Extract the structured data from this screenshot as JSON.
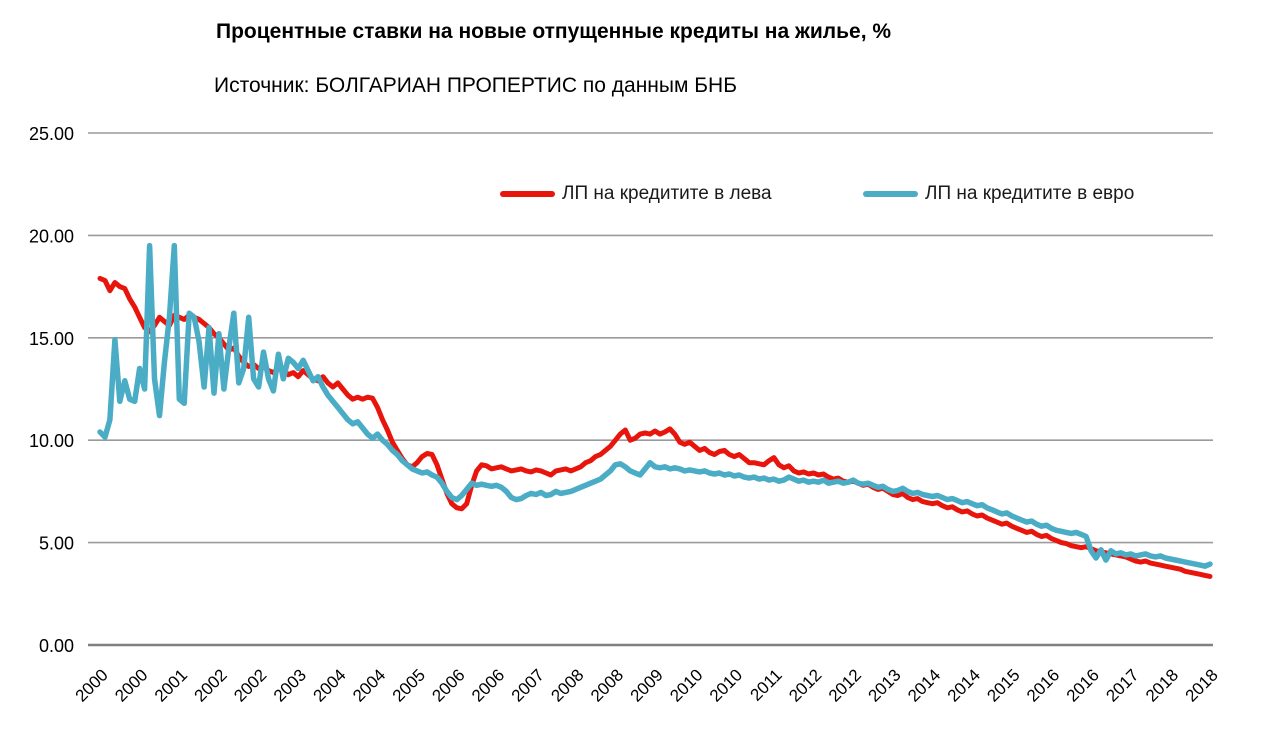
{
  "title": "Процентные ставки на новые отпущенные кредиты на жилье, %",
  "subtitle": "Источник: БОЛГАРИАН ПРОПЕРТИС по данным БНБ",
  "legend": [
    {
      "label": "ЛП на кредитите в лева",
      "color": "#e8150d"
    },
    {
      "label": "ЛП на кредитите в евро",
      "color": "#4bacc6"
    }
  ],
  "colors": {
    "grid": "#9b9b9b",
    "axis_line": "#808080",
    "text": "#000000",
    "background": "#ffffff"
  },
  "chart_data": {
    "type": "line",
    "x_unit": "month",
    "x_start": "2000-01",
    "x_end": "2018-09",
    "x_tick_interval_months": 8,
    "x_tick_labels": [
      "2000",
      "2000",
      "2001",
      "2002",
      "2002",
      "2003",
      "2004",
      "2004",
      "2005",
      "2006",
      "2006",
      "2007",
      "2008",
      "2008",
      "2009",
      "2010",
      "2010",
      "2011",
      "2012",
      "2012",
      "2013",
      "2014",
      "2014",
      "2015",
      "2016",
      "2016",
      "2017",
      "2018",
      "2018"
    ],
    "y_ticks": [
      "25.00",
      "20.00",
      "15.00",
      "10.00",
      "5.00",
      "0.00"
    ],
    "ylim": [
      0,
      25
    ],
    "grid": "horizontal",
    "legend_position": "top-center",
    "series": [
      {
        "name": "ЛП на кредитите в лева",
        "color": "#e8150d",
        "values": [
          17.9,
          17.8,
          17.3,
          17.7,
          17.5,
          17.4,
          16.9,
          16.5,
          16.0,
          15.5,
          15.3,
          15.6,
          16.0,
          15.8,
          15.6,
          16.1,
          16.0,
          15.9,
          16.1,
          16.0,
          15.9,
          15.7,
          15.5,
          15.2,
          15.0,
          14.7,
          14.4,
          14.5,
          14.1,
          13.8,
          13.6,
          13.7,
          13.5,
          13.6,
          13.4,
          13.3,
          13.5,
          13.4,
          13.2,
          13.3,
          13.1,
          13.4,
          13.2,
          13.0,
          12.9,
          13.1,
          12.8,
          12.6,
          12.8,
          12.5,
          12.2,
          12.0,
          12.1,
          12.0,
          12.1,
          12.05,
          11.6,
          11.0,
          10.5,
          9.9,
          9.5,
          9.1,
          8.8,
          8.7,
          8.9,
          9.2,
          9.35,
          9.3,
          8.8,
          8.1,
          7.4,
          6.9,
          6.7,
          6.65,
          6.9,
          7.8,
          8.5,
          8.8,
          8.75,
          8.6,
          8.65,
          8.7,
          8.6,
          8.5,
          8.55,
          8.6,
          8.5,
          8.45,
          8.55,
          8.5,
          8.4,
          8.3,
          8.5,
          8.55,
          8.6,
          8.5,
          8.6,
          8.7,
          8.9,
          9.0,
          9.2,
          9.3,
          9.5,
          9.7,
          10.0,
          10.3,
          10.5,
          10.0,
          10.1,
          10.3,
          10.35,
          10.3,
          10.45,
          10.3,
          10.4,
          10.55,
          10.3,
          9.9,
          9.8,
          9.9,
          9.7,
          9.5,
          9.6,
          9.4,
          9.3,
          9.45,
          9.5,
          9.3,
          9.2,
          9.3,
          9.1,
          8.9,
          8.9,
          8.85,
          8.8,
          9.0,
          9.15,
          8.8,
          8.65,
          8.75,
          8.5,
          8.4,
          8.45,
          8.35,
          8.4,
          8.3,
          8.35,
          8.2,
          8.1,
          8.15,
          8.0,
          7.95,
          8.0,
          7.9,
          7.8,
          7.85,
          7.7,
          7.6,
          7.65,
          7.5,
          7.35,
          7.3,
          7.4,
          7.2,
          7.1,
          7.15,
          7.0,
          6.95,
          6.9,
          6.95,
          6.8,
          6.7,
          6.75,
          6.6,
          6.5,
          6.55,
          6.4,
          6.3,
          6.35,
          6.2,
          6.1,
          6.0,
          5.9,
          5.95,
          5.8,
          5.7,
          5.6,
          5.5,
          5.55,
          5.4,
          5.3,
          5.35,
          5.2,
          5.1,
          5.0,
          4.95,
          4.85,
          4.8,
          4.75,
          4.8,
          4.7,
          4.6,
          4.55,
          4.5,
          4.45,
          4.4,
          4.35,
          4.3,
          4.2,
          4.1,
          4.05,
          4.1,
          4.0,
          3.95,
          3.9,
          3.85,
          3.8,
          3.75,
          3.7,
          3.6,
          3.55,
          3.5,
          3.45,
          3.4,
          3.35
        ]
      },
      {
        "name": "ЛП на кредитите в евро",
        "color": "#4bacc6",
        "values": [
          10.4,
          10.15,
          11.0,
          14.9,
          11.9,
          12.9,
          12.0,
          11.9,
          13.5,
          12.5,
          19.5,
          13.0,
          11.2,
          13.8,
          16.0,
          19.5,
          12.0,
          11.8,
          16.2,
          16.0,
          14.8,
          12.6,
          15.5,
          12.3,
          15.2,
          12.5,
          14.5,
          16.2,
          12.8,
          13.5,
          16.0,
          13.0,
          12.6,
          14.3,
          13.0,
          12.4,
          14.2,
          13.0,
          14.0,
          13.8,
          13.5,
          13.9,
          13.4,
          12.9,
          13.1,
          12.6,
          12.2,
          11.9,
          11.6,
          11.3,
          11.0,
          10.8,
          10.9,
          10.6,
          10.3,
          10.1,
          10.3,
          10.0,
          9.8,
          9.5,
          9.3,
          9.0,
          8.8,
          8.6,
          8.5,
          8.4,
          8.45,
          8.3,
          8.2,
          7.9,
          7.5,
          7.2,
          7.1,
          7.3,
          7.6,
          7.9,
          7.8,
          7.85,
          7.8,
          7.75,
          7.8,
          7.7,
          7.5,
          7.2,
          7.1,
          7.15,
          7.3,
          7.4,
          7.35,
          7.45,
          7.3,
          7.35,
          7.5,
          7.4,
          7.45,
          7.5,
          7.6,
          7.7,
          7.8,
          7.9,
          8.0,
          8.1,
          8.3,
          8.5,
          8.8,
          8.85,
          8.7,
          8.5,
          8.4,
          8.3,
          8.6,
          8.9,
          8.7,
          8.65,
          8.7,
          8.6,
          8.65,
          8.6,
          8.5,
          8.55,
          8.5,
          8.45,
          8.5,
          8.4,
          8.35,
          8.4,
          8.3,
          8.35,
          8.25,
          8.3,
          8.2,
          8.15,
          8.2,
          8.1,
          8.15,
          8.05,
          8.1,
          8.0,
          8.05,
          8.2,
          8.1,
          8.0,
          8.05,
          7.95,
          8.0,
          7.95,
          8.05,
          7.9,
          7.95,
          8.0,
          7.9,
          7.95,
          8.05,
          7.9,
          7.85,
          7.9,
          7.8,
          7.7,
          7.75,
          7.6,
          7.5,
          7.55,
          7.65,
          7.5,
          7.4,
          7.45,
          7.35,
          7.3,
          7.25,
          7.3,
          7.2,
          7.1,
          7.15,
          7.05,
          6.95,
          7.0,
          6.9,
          6.8,
          6.85,
          6.7,
          6.6,
          6.5,
          6.4,
          6.45,
          6.3,
          6.2,
          6.1,
          6.0,
          6.05,
          5.9,
          5.8,
          5.85,
          5.7,
          5.6,
          5.55,
          5.5,
          5.45,
          5.5,
          5.4,
          5.3,
          4.6,
          4.25,
          4.65,
          4.15,
          4.6,
          4.45,
          4.5,
          4.4,
          4.45,
          4.35,
          4.4,
          4.45,
          4.35,
          4.3,
          4.35,
          4.25,
          4.2,
          4.15,
          4.1,
          4.05,
          4.0,
          3.95,
          3.9,
          3.85,
          3.95
        ]
      }
    ]
  }
}
